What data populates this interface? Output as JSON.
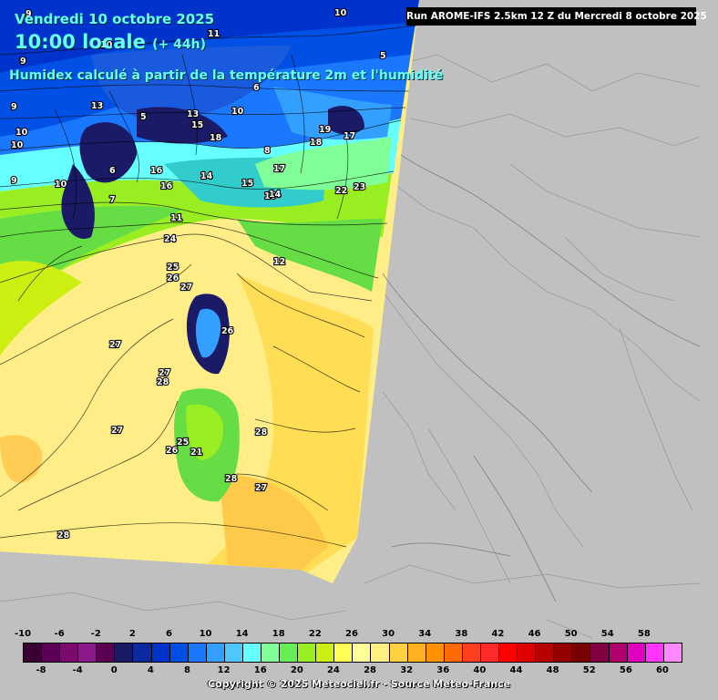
{
  "header": {
    "date_line": "Vendredi 10 octobre 2025",
    "time_line": "10:00 locale",
    "lead": "(+ 44h)",
    "field_line": "Humidex calculé à partir de la température 2m et l'humidité"
  },
  "run_info": "Run AROME-IFS 2.5km 12 Z du Mercredi 8 octobre 2025",
  "copyright": "Copyright © 2025 Meteociel.fr - Source Meteo-France",
  "colors": {
    "land_grey": "#c0c0c0",
    "title_cyan": "#66ffff"
  },
  "legend": {
    "top_labels": [
      "-10",
      "-6",
      "-2",
      "2",
      "6",
      "10",
      "14",
      "18",
      "22",
      "26",
      "30",
      "34",
      "38",
      "42",
      "46",
      "50",
      "54",
      "58"
    ],
    "bottom_labels": [
      "-8",
      "-4",
      "0",
      "4",
      "8",
      "12",
      "16",
      "20",
      "24",
      "28",
      "32",
      "36",
      "40",
      "44",
      "48",
      "52",
      "56",
      "60"
    ],
    "colors": [
      "#3a0033",
      "#5c0057",
      "#7a0a6e",
      "#8b1a8b",
      "#5a0050",
      "#1a1a66",
      "#0b2aa0",
      "#0033cc",
      "#0050e6",
      "#1a78ff",
      "#33a0ff",
      "#4dc8ff",
      "#66ffff",
      "#80ff99",
      "#66ee55",
      "#99ee22",
      "#ccee11",
      "#ffff55",
      "#ffff99",
      "#ffee80",
      "#ffd040",
      "#ffb020",
      "#ff9000",
      "#ff6a00",
      "#ff4020",
      "#ff2a2a",
      "#ff0000",
      "#dd0000",
      "#b80000",
      "#960000",
      "#780000",
      "#800040",
      "#b00070",
      "#e000c0",
      "#ff33ff",
      "#ff88ff"
    ]
  },
  "contour_labels": [
    {
      "v": "9"
    },
    {
      "v": "10"
    },
    {
      "v": "11"
    },
    {
      "v": "10"
    },
    {
      "v": "5"
    },
    {
      "v": "9"
    },
    {
      "v": "9"
    },
    {
      "v": "10"
    },
    {
      "v": "13"
    },
    {
      "v": "5"
    },
    {
      "v": "6"
    },
    {
      "v": "7"
    },
    {
      "v": "10"
    },
    {
      "v": "13"
    },
    {
      "v": "15"
    },
    {
      "v": "18"
    },
    {
      "v": "19"
    },
    {
      "v": "17"
    },
    {
      "v": "16"
    },
    {
      "v": "16"
    },
    {
      "v": "14"
    },
    {
      "v": "15"
    },
    {
      "v": "16"
    },
    {
      "v": "17"
    },
    {
      "v": "18"
    },
    {
      "v": "22"
    },
    {
      "v": "23"
    },
    {
      "v": "11"
    },
    {
      "v": "24"
    },
    {
      "v": "25"
    },
    {
      "v": "26"
    },
    {
      "v": "27"
    },
    {
      "v": "26"
    },
    {
      "v": "27"
    },
    {
      "v": "27"
    },
    {
      "v": "28"
    },
    {
      "v": "27"
    },
    {
      "v": "25"
    },
    {
      "v": "26"
    },
    {
      "v": "21"
    },
    {
      "v": "28"
    },
    {
      "v": "28"
    },
    {
      "v": "27"
    },
    {
      "v": "28"
    },
    {
      "v": "10"
    },
    {
      "v": "9"
    },
    {
      "v": "6"
    },
    {
      "v": "10"
    },
    {
      "v": "14"
    },
    {
      "v": "12"
    },
    {
      "v": "8"
    }
  ]
}
